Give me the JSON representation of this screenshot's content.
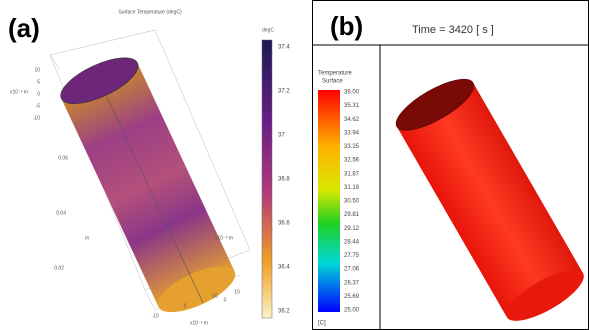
{
  "panel_a": {
    "label": "(a)",
    "title": "Surface Temperature (degC)",
    "colorbar": {
      "unit": "degC",
      "ticks": [
        "37.4",
        "37.2",
        "37",
        "36.8",
        "36.6",
        "36.4",
        "36.2"
      ]
    },
    "axes": {
      "z_scale": "x10⁻³ m",
      "z_ticks": [
        "10",
        "5",
        "0",
        "-5",
        "-10"
      ],
      "y_ticks": [
        "0.06",
        "0.04",
        "0.02"
      ],
      "y_label": "m",
      "y_scale": "x10⁻³ m",
      "x_ticks": [
        "-10",
        "0",
        "10"
      ],
      "x_scale": "x10⁻³ m",
      "x2_ticks": [
        "0",
        "10"
      ]
    }
  },
  "panel_b": {
    "label": "(b)",
    "time": "Time = 3420 [ s ]",
    "colorbar": {
      "title": "Temperature",
      "subtitle": "Surface",
      "unit": "[C]",
      "ticks": [
        "36.00",
        "35.31",
        "34.62",
        "33.94",
        "33.25",
        "32.56",
        "31.87",
        "31.19",
        "30.50",
        "29.81",
        "29.12",
        "28.44",
        "27.75",
        "27.06",
        "26.37",
        "25.69",
        "25.00"
      ]
    }
  }
}
